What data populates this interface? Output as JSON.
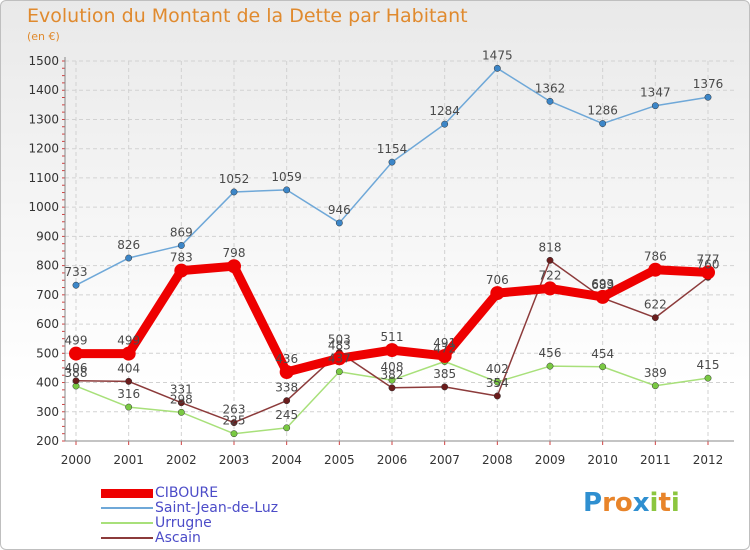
{
  "title": "Evolution du Montant de la Dette par Habitant",
  "subtitle": "(en €)",
  "logo": {
    "letters": [
      {
        "char": "P",
        "color": "#2f8fd0"
      },
      {
        "char": "r",
        "color": "#e8842a"
      },
      {
        "char": "o",
        "color": "#e8842a"
      },
      {
        "char": "x",
        "color": "#2f8fd0"
      },
      {
        "char": "i",
        "color": "#8cc63f"
      },
      {
        "char": "t",
        "color": "#e8842a"
      },
      {
        "char": "i",
        "color": "#8cc63f"
      }
    ]
  },
  "chart_data": {
    "type": "line",
    "title": "Evolution du Montant de la Dette par Habitant",
    "subtitle": "(en €)",
    "x": [
      "2000",
      "2001",
      "2002",
      "2003",
      "2004",
      "2005",
      "2006",
      "2007",
      "2008",
      "2009",
      "2010",
      "2011",
      "2012"
    ],
    "ylim": [
      200,
      1500
    ],
    "yticks": [
      200,
      300,
      400,
      500,
      600,
      700,
      800,
      900,
      1000,
      1100,
      1200,
      1300,
      1400,
      1500
    ],
    "grid": true,
    "legend_position": "bottom-left",
    "series": [
      {
        "name": "Saint-Jean-de-Luz",
        "color": "#6fa8d8",
        "marker": "#3c86c8",
        "values": [
          733,
          826,
          869,
          1052,
          1059,
          946,
          1154,
          1284,
          1475,
          1362,
          1286,
          1347,
          1376
        ]
      },
      {
        "name": "Urrugne",
        "color": "#a8e07a",
        "marker": "#7ac943",
        "values": [
          388,
          316,
          298,
          225,
          245,
          437,
          408,
          472,
          402,
          456,
          454,
          389,
          415
        ]
      },
      {
        "name": "Ascain",
        "color": "#8c3b3b",
        "marker": "#6b1c1c",
        "values": [
          406,
          404,
          331,
          263,
          338,
          503,
          382,
          385,
          354,
          818,
          689,
          622,
          760
        ]
      },
      {
        "name": "CIBOURE",
        "color": "#ee0000",
        "marker": "#ee0000",
        "values": [
          499,
          499,
          783,
          798,
          436,
          483,
          511,
          491,
          706,
          722,
          693,
          786,
          777
        ]
      }
    ],
    "legend_order": [
      "CIBOURE",
      "Saint-Jean-de-Luz",
      "Urrugne",
      "Ascain"
    ]
  }
}
